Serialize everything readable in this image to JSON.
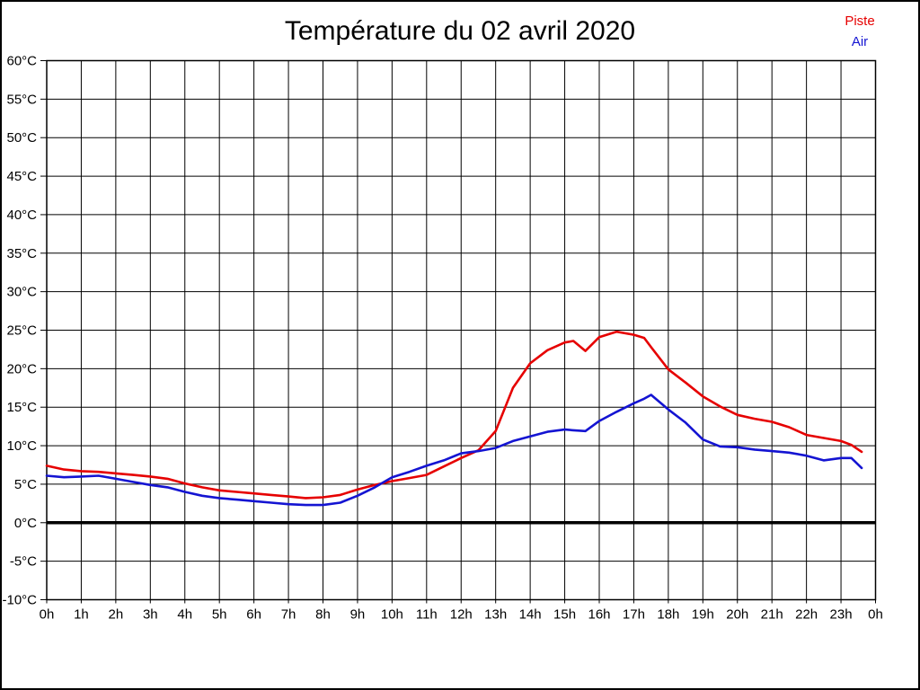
{
  "window": {
    "background_color": "#ffffff",
    "border_color": "#000000"
  },
  "header": {
    "title": "Température du 02 avril 2020"
  },
  "legend": [
    {
      "label": "Piste",
      "color": "#e60000"
    },
    {
      "label": "Air",
      "color": "#1414d2"
    }
  ],
  "chart_data": {
    "type": "line",
    "title": "Température du 02 avril 2020",
    "xlabel": "",
    "ylabel": "",
    "xlim": [
      0,
      24
    ],
    "ylim": [
      -10,
      60
    ],
    "x_tick_step_hours": 1,
    "y_tick_step_degrees": 5,
    "x_tick_labels": [
      "0h",
      "1h",
      "2h",
      "3h",
      "4h",
      "5h",
      "6h",
      "7h",
      "8h",
      "9h",
      "10h",
      "11h",
      "12h",
      "13h",
      "14h",
      "15h",
      "16h",
      "17h",
      "18h",
      "19h",
      "20h",
      "21h",
      "22h",
      "23h",
      "0h"
    ],
    "y_tick_labels": [
      "60°C",
      "55°C",
      "50°C",
      "45°C",
      "40°C",
      "35°C",
      "30°C",
      "25°C",
      "20°C",
      "15°C",
      "10°C",
      "5°C",
      "0°C",
      "-5°C",
      "-10°C"
    ],
    "grid": true,
    "grid_color": "#000000",
    "zero_line": {
      "value": 0,
      "thick": true,
      "color": "#000000"
    },
    "legend_position": "top-right",
    "series": [
      {
        "name": "Piste",
        "color": "#e60000",
        "x": [
          0,
          0.5,
          1,
          1.5,
          2,
          2.5,
          3,
          3.5,
          4,
          4.5,
          5,
          5.5,
          6,
          6.5,
          7,
          7.5,
          8,
          8.5,
          9,
          9.5,
          10,
          10.5,
          11,
          11.5,
          12,
          12.5,
          13,
          13.5,
          14,
          14.5,
          15,
          15.25,
          15.6,
          16,
          16.5,
          17,
          17.3,
          17.5,
          18,
          18.5,
          19,
          19.5,
          20,
          20.5,
          21,
          21.5,
          22,
          22.5,
          23,
          23.3,
          23.6
        ],
        "values": [
          7.4,
          6.9,
          6.7,
          6.6,
          6.4,
          6.2,
          6.0,
          5.7,
          5.1,
          4.6,
          4.2,
          4.0,
          3.8,
          3.6,
          3.4,
          3.2,
          3.3,
          3.6,
          4.3,
          4.9,
          5.4,
          5.8,
          6.2,
          7.3,
          8.4,
          9.4,
          11.9,
          17.5,
          20.7,
          22.4,
          23.4,
          23.6,
          22.3,
          24.1,
          24.8,
          24.4,
          24.0,
          22.8,
          19.9,
          18.2,
          16.4,
          15.1,
          14.0,
          13.5,
          13.1,
          12.4,
          11.4,
          11.0,
          10.6,
          10.1,
          9.2
        ]
      },
      {
        "name": "Air",
        "color": "#1414d2",
        "x": [
          0,
          0.5,
          1,
          1.5,
          2,
          2.5,
          3,
          3.5,
          4,
          4.5,
          5,
          5.5,
          6,
          6.5,
          7,
          7.5,
          8,
          8.5,
          9,
          9.5,
          10,
          10.5,
          11,
          11.5,
          12,
          12.5,
          13,
          13.5,
          14,
          14.5,
          15,
          15.25,
          15.6,
          16,
          16.5,
          17,
          17.3,
          17.5,
          18,
          18.5,
          19,
          19.5,
          20,
          20.5,
          21,
          21.5,
          22,
          22.5,
          23,
          23.3,
          23.6
        ],
        "values": [
          6.1,
          5.9,
          6.0,
          6.1,
          5.7,
          5.3,
          4.9,
          4.6,
          4.0,
          3.5,
          3.2,
          3.0,
          2.8,
          2.6,
          2.4,
          2.3,
          2.3,
          2.6,
          3.5,
          4.6,
          5.9,
          6.6,
          7.4,
          8.1,
          9.0,
          9.3,
          9.7,
          10.6,
          11.2,
          11.8,
          12.1,
          12.0,
          11.9,
          13.2,
          14.4,
          15.5,
          16.1,
          16.6,
          14.7,
          13.0,
          10.8,
          9.9,
          9.8,
          9.5,
          9.3,
          9.1,
          8.7,
          8.1,
          8.4,
          8.4,
          7.1
        ]
      }
    ]
  }
}
